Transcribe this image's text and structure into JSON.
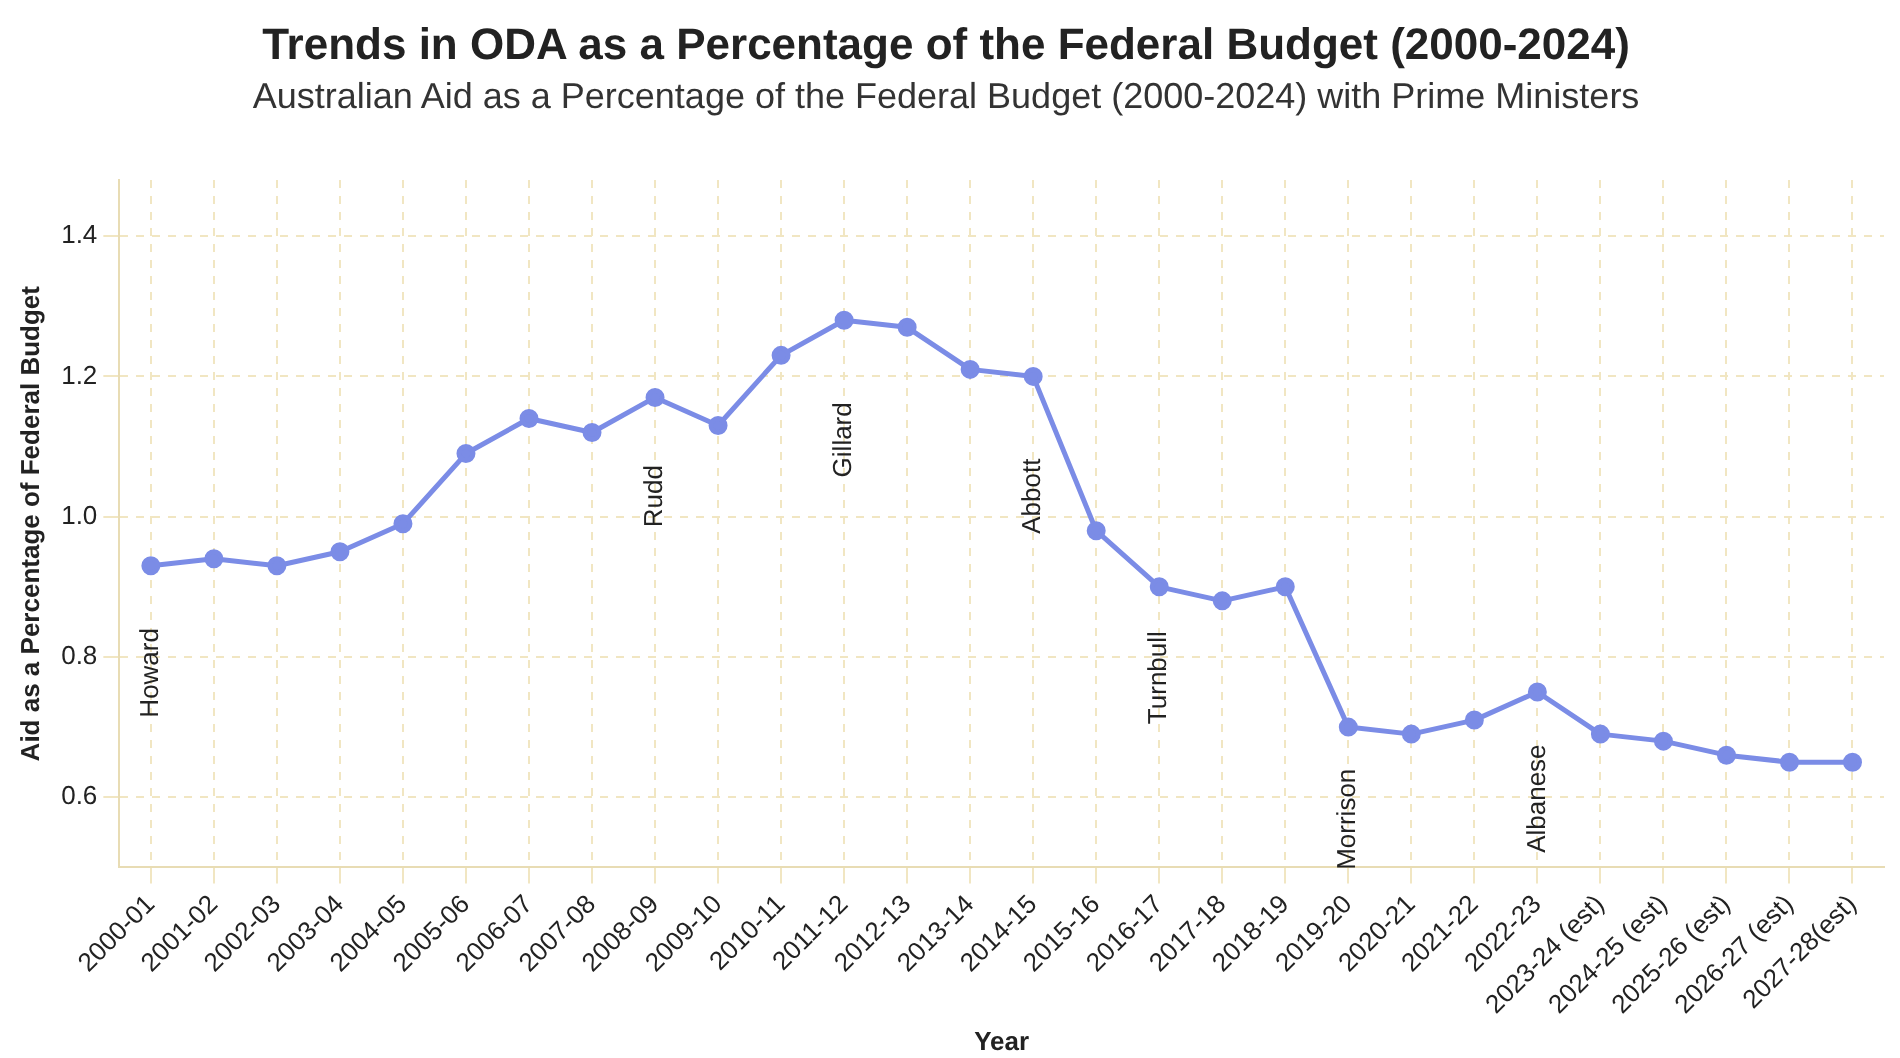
{
  "chart_data": {
    "type": "line",
    "title": "Trends in ODA as a Percentage of the Federal Budget (2000-2024)",
    "subtitle": "Australian Aid as a Percentage of the Federal Budget (2000-2024) with Prime Ministers",
    "xlabel": "Year",
    "ylabel": "Aid as a Percentage of Federal Budget",
    "categories": [
      "2000-01",
      "2001-02",
      "2002-03",
      "2003-04",
      "2004-05",
      "2005-06",
      "2006-07",
      "2007-08",
      "2008-09",
      "2009-10",
      "2010-11",
      "2011-12",
      "2012-13",
      "2013-14",
      "2014-15",
      "2015-16",
      "2016-17",
      "2017-18",
      "2018-19",
      "2019-20",
      "2020-21",
      "2021-22",
      "2022-23",
      "2023-24 (est)",
      "2024-25 (est)",
      "2025-26 (est)",
      "2026-27 (est)",
      "2027-28(est)"
    ],
    "series": [
      {
        "color": "#7b8ce6",
        "values": [
          0.93,
          0.94,
          0.93,
          0.95,
          0.99,
          1.09,
          1.14,
          1.12,
          1.17,
          1.13,
          1.23,
          1.28,
          1.27,
          1.21,
          1.2,
          0.98,
          0.9,
          0.88,
          0.9,
          0.7,
          0.69,
          0.71,
          0.75,
          0.69,
          0.68,
          0.66,
          0.65,
          0.65
        ]
      }
    ],
    "ylim": [
      0.5,
      1.48
    ],
    "yticks": [
      0.6,
      0.8,
      {
        "value": 1,
        "label": "1.0"
      },
      1.2,
      1.4
    ],
    "grid": true,
    "marker": "circle",
    "line_style": "solid",
    "annotations": [
      "Howard",
      "Rudd",
      "Gillard",
      "Abbott",
      "Turnbull",
      "Morrison",
      "Albanese"
    ]
  }
}
